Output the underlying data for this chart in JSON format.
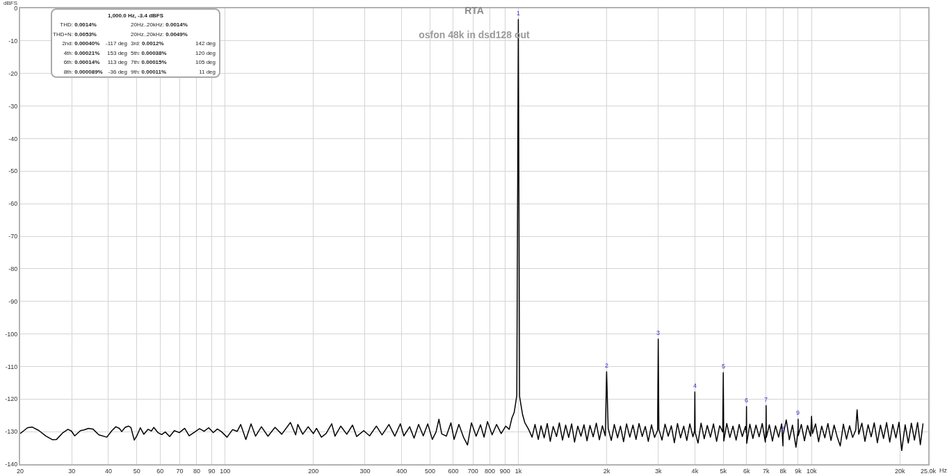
{
  "chart_data": {
    "type": "line",
    "title": "RTA",
    "subtitle": "osfon 48k in dsd128 out",
    "xlabel": "Hz",
    "ylabel": "dBFS",
    "log": "x",
    "grid": true,
    "xlim": [
      20,
      25000
    ],
    "ylim": [
      -140,
      0
    ],
    "xticks": [
      20,
      30,
      40,
      50,
      60,
      70,
      80,
      90,
      100,
      200,
      300,
      400,
      500,
      600,
      700,
      800,
      900,
      {
        "value": 1000,
        "label": "1k"
      },
      {
        "value": 2000,
        "label": "2k"
      },
      {
        "value": 3000,
        "label": "3k"
      },
      {
        "value": 4000,
        "label": "4k"
      },
      {
        "value": 5000,
        "label": "5k"
      },
      {
        "value": 6000,
        "label": "6k"
      },
      {
        "value": 7000,
        "label": "7k"
      },
      {
        "value": 8000,
        "label": "8k"
      },
      {
        "value": 9000,
        "label": "9k"
      },
      {
        "value": 10000,
        "label": "10k"
      },
      {
        "value": 20000,
        "label": "20k"
      },
      {
        "value": 25000,
        "label": "25.0k"
      }
    ],
    "yticks": [
      0,
      -10,
      -20,
      -30,
      -40,
      -50,
      -60,
      -70,
      -80,
      -90,
      -100,
      -110,
      -120,
      -130,
      -140
    ],
    "annotations": [
      "1,000.0 Hz, -3.4 dBFS",
      "THD: 0.0014%",
      "20Hz..20kHz: 0.0014%",
      "THD+N: 0.0053%",
      "20Hz..20kHz: 0.0049%",
      "2nd: 0.00040%",
      "-117 deg",
      "3rd: 0.0012%",
      "142 deg",
      "4th: 0.00021%",
      "153 deg",
      "5th: 0.00038%",
      "120 deg",
      "6th: 0.00014%",
      "113 deg",
      "7th: 0.00015%",
      "105 deg",
      "8th: 0.000089%",
      "-36 deg",
      "9th: 0.00011%",
      "11 deg",
      {
        "text": "1",
        "x": 1000,
        "y": -3.4
      },
      {
        "text": "2",
        "x": 2000,
        "y": -111.6
      },
      {
        "text": "3",
        "x": 3000,
        "y": -101.6
      },
      {
        "text": "4",
        "x": 4000,
        "y": -117.8
      },
      {
        "text": "5",
        "x": 5000,
        "y": -111.9
      },
      {
        "text": "6",
        "x": 6000,
        "y": -122.3
      },
      {
        "text": "7",
        "x": 7000,
        "y": -122.0
      },
      {
        "text": "8",
        "x": 8000,
        "y": -131.0
      },
      {
        "text": "9",
        "x": 9000,
        "y": -126.2
      }
    ],
    "x": [
      20,
      21.2,
      22.0,
      23.2,
      24.5,
      25.8,
      26.6,
      28.0,
      29.1,
      29.9,
      30.7,
      32.1,
      33.0,
      34.2,
      35.4,
      37.1,
      39.5,
      41.1,
      42.4,
      43.6,
      44.4,
      45.6,
      46.8,
      47.7,
      49.0,
      50.0,
      51.4,
      52.8,
      54.6,
      56.1,
      57.1,
      59.0,
      60.8,
      62.5,
      64.7,
      67.1,
      69.8,
      72.8,
      75.4,
      78.2,
      81.8,
      84.8,
      87.9,
      91.1,
      94.1,
      97.1,
      101.5,
      106,
      110,
      113,
      117.7,
      122.6,
      127,
      133,
      140,
      148,
      156,
      167,
      174,
      177,
      184,
      192,
      200,
      205,
      213,
      221,
      231,
      237,
      248,
      260,
      272,
      281,
      297,
      311,
      328,
      343,
      362,
      379,
      396,
      407,
      426,
      441,
      457,
      474,
      491,
      509,
      524,
      536,
      548,
      568,
      589,
      604,
      627,
      650,
      671,
      692,
      718,
      743,
      764,
      785,
      814,
      843,
      874,
      906,
      931,
      951,
      968,
      979,
      988,
      1000,
      1010,
      1020,
      1034,
      1052,
      1084,
      1114,
      1140,
      1170,
      1195,
      1225,
      1255,
      1285,
      1315,
      1350,
      1380,
      1415,
      1450,
      1485,
      1520,
      1555,
      1595,
      1635,
      1675,
      1715,
      1755,
      1800,
      1845,
      1890,
      1935,
      1980,
      2000,
      2025,
      2075,
      2125,
      2180,
      2230,
      2285,
      2340,
      2400,
      2460,
      2520,
      2580,
      2645,
      2710,
      2775,
      2845,
      2915,
      2985,
      3000,
      3015,
      3090,
      3165,
      3245,
      3325,
      3405,
      3490,
      3575,
      3665,
      3755,
      3845,
      3940,
      3990,
      4000,
      4010,
      4100,
      4200,
      4305,
      4410,
      4520,
      4630,
      4745,
      4860,
      4980,
      5000,
      5020,
      5140,
      5265,
      5395,
      5530,
      5665,
      5805,
      5950,
      5990,
      6000,
      6010,
      6160,
      6310,
      6465,
      6625,
      6790,
      6955,
      6990,
      7000,
      7010,
      7180,
      7355,
      7535,
      7720,
      7910,
      7990,
      8000,
      8200,
      8400,
      8610,
      8850,
      8990,
      9000,
      9010,
      9230,
      9460,
      9690,
      9930,
      10000,
      10070,
      10320,
      10570,
      10830,
      11100,
      11370,
      11650,
      11940,
      12230,
      12530,
      12840,
      13160,
      13480,
      13810,
      14150,
      14300,
      14490,
      14850,
      15210,
      15590,
      15970,
      16360,
      16770,
      17180,
      17600,
      18030,
      18480,
      18930,
      19400,
      19870,
      20300,
      20860,
      21380,
      21900,
      22440,
      22990,
      23500,
      24000
    ],
    "series": [
      {
        "color": "#000000",
        "values": [
          -130.6,
          -128.8,
          -128.6,
          -129.7,
          -131.4,
          -132.5,
          -132.4,
          -130.3,
          -129.3,
          -129.8,
          -131.3,
          -129.7,
          -129.5,
          -129.0,
          -129.2,
          -131.0,
          -131.7,
          -129.7,
          -128.5,
          -129.0,
          -130.0,
          -128.7,
          -128.3,
          -128.7,
          -132.6,
          -131.3,
          -128.8,
          -130.8,
          -129.3,
          -129.8,
          -128.7,
          -130.3,
          -130.9,
          -130.1,
          -131.5,
          -129.7,
          -130.3,
          -129.0,
          -131.3,
          -130.3,
          -129.1,
          -129.9,
          -128.8,
          -130.3,
          -129.2,
          -130.0,
          -131.7,
          -129.4,
          -129.9,
          -127.8,
          -132.4,
          -127.6,
          -131.4,
          -128.5,
          -131.4,
          -128.7,
          -130.8,
          -127.2,
          -131.0,
          -127.8,
          -130.8,
          -128.5,
          -130.6,
          -129.0,
          -131.7,
          -130.6,
          -127.6,
          -131.4,
          -128.3,
          -130.8,
          -128.0,
          -131.5,
          -129.7,
          -131.3,
          -128.3,
          -131.0,
          -127.8,
          -131.4,
          -127.6,
          -131.3,
          -128.5,
          -132.0,
          -127.8,
          -131.3,
          -127.6,
          -132.4,
          -130.1,
          -126.2,
          -130.7,
          -131.4,
          -127.3,
          -132.4,
          -127.8,
          -131.7,
          -134.1,
          -127.3,
          -131.4,
          -127.9,
          -131.7,
          -126.9,
          -131.0,
          -127.8,
          -130.6,
          -128.3,
          -129.3,
          -125.8,
          -124.1,
          -121.3,
          -118.9,
          -3.4,
          -119.2,
          -121.6,
          -124.8,
          -127.2,
          -129.3,
          -131.7,
          -127.8,
          -132.4,
          -128.2,
          -131.9,
          -127.5,
          -133.0,
          -128.4,
          -131.5,
          -127.3,
          -132.6,
          -128.0,
          -131.8,
          -127.6,
          -133.2,
          -128.3,
          -131.4,
          -127.9,
          -132.8,
          -128.1,
          -131.6,
          -127.4,
          -132.5,
          -128.2,
          -131.3,
          -111.6,
          -129.0,
          -132.7,
          -127.8,
          -131.9,
          -128.3,
          -133.1,
          -127.6,
          -131.7,
          -128.0,
          -132.4,
          -127.5,
          -131.5,
          -128.4,
          -133.0,
          -127.9,
          -131.8,
          -129.6,
          -101.6,
          -129.3,
          -132.6,
          -127.7,
          -131.4,
          -128.2,
          -133.4,
          -127.5,
          -131.9,
          -128.3,
          -132.7,
          -127.6,
          -131.6,
          -129.8,
          -117.8,
          -130.2,
          -133.5,
          -127.4,
          -132.2,
          -128.1,
          -131.7,
          -127.6,
          -133.0,
          -128.2,
          -130.1,
          -111.9,
          -132.9,
          -127.5,
          -131.8,
          -128.3,
          -132.6,
          -127.8,
          -131.5,
          -128.4,
          -130.4,
          -122.3,
          -133.6,
          -127.7,
          -132.1,
          -128.0,
          -131.6,
          -127.5,
          -133.2,
          -129.4,
          -122.0,
          -131.8,
          -127.9,
          -132.9,
          -128.2,
          -131.7,
          -127.6,
          -134.4,
          -131.0,
          -126.4,
          -132.5,
          -128.0,
          -134.8,
          -129.8,
          -126.2,
          -131.2,
          -127.8,
          -132.8,
          -128.1,
          -131.4,
          -125.3,
          -130.6,
          -127.6,
          -133.1,
          -128.3,
          -131.9,
          -127.5,
          -132.7,
          -128.0,
          -131.6,
          -134.4,
          -127.7,
          -132.3,
          -128.2,
          -131.8,
          -129.5,
          -123.3,
          -130.8,
          -127.4,
          -133.0,
          -127.9,
          -131.6,
          -127.3,
          -133.4,
          -128.0,
          -132.1,
          -127.2,
          -133.2,
          -127.8,
          -131.9,
          -127.1,
          -135.8,
          -127.9,
          -133.5,
          -127.4,
          -132.6,
          -127.2,
          -134.0,
          -127.5
        ]
      }
    ]
  }
}
